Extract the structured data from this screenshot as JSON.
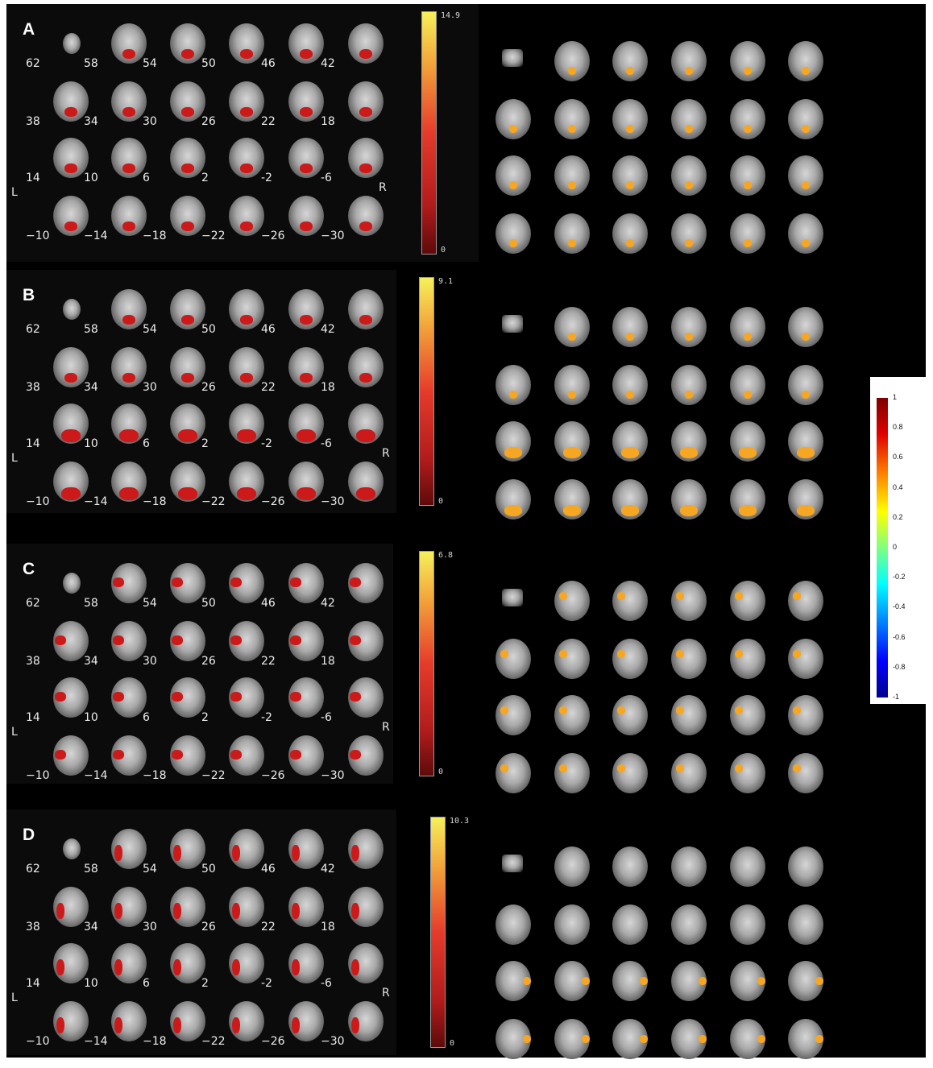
{
  "panels": [
    {
      "letter": "A",
      "max": "14.9",
      "min": "0",
      "top": 0,
      "height": 320
    },
    {
      "letter": "B",
      "max": "9.1",
      "min": "0",
      "top": 330,
      "height": 302
    },
    {
      "letter": "C",
      "max": "6.8",
      "min": "0",
      "top": 670,
      "height": 298
    },
    {
      "letter": "D",
      "max": "10.3",
      "min": "0",
      "top": 1000,
      "height": 305
    }
  ],
  "slice_labels": [
    "62",
    "58",
    "54",
    "50",
    "46",
    "42",
    "38",
    "34",
    "30",
    "26",
    "22",
    "18",
    "14",
    "10",
    "6",
    "2",
    "-2",
    "-6",
    "−10",
    "−14",
    "−18",
    "−22",
    "−26",
    "−30"
  ],
  "side_labels": {
    "left": "L",
    "right": "R"
  },
  "correlation_scale": {
    "ticks": [
      "1",
      "0.8",
      "0.6",
      "0.4",
      "0.2",
      "0",
      "-0.2",
      "-0.4",
      "-0.6",
      "-0.8",
      "-1"
    ],
    "colors": {
      "high": "#7f0000",
      "mid": "#ffff00",
      "zero": "#7fff7f",
      "low": "#00008f"
    }
  },
  "colors": {
    "activation_red": "#cc1a1a",
    "activation_yellow": "#f5a623",
    "background": "#000000"
  }
}
